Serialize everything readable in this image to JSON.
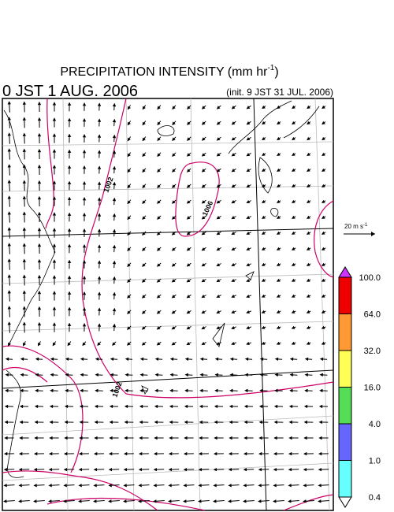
{
  "title": {
    "text": "PRECIPITATION INTENSITY (mm hr",
    "superscript": "-1",
    "close": ")"
  },
  "valid_time": "0 JST 1 AUG. 2006",
  "init_time": "(init. 9 JST 31 JUL. 2006)",
  "vector_scale": {
    "text": "20 m s",
    "superscript": "-1"
  },
  "colorbar": {
    "labels": [
      "100.0",
      "64.0",
      "32.0",
      "16.0",
      "4.0",
      "1.0",
      "0.4"
    ],
    "colors": [
      "#ee0000",
      "#ff9933",
      "#ffff55",
      "#55dd55",
      "#6666ff",
      "#66ffff"
    ],
    "over_color": "#cc33ff",
    "under_color": "#ffffff"
  },
  "contour_labels": [
    "1002",
    "1006",
    "1002"
  ]
}
